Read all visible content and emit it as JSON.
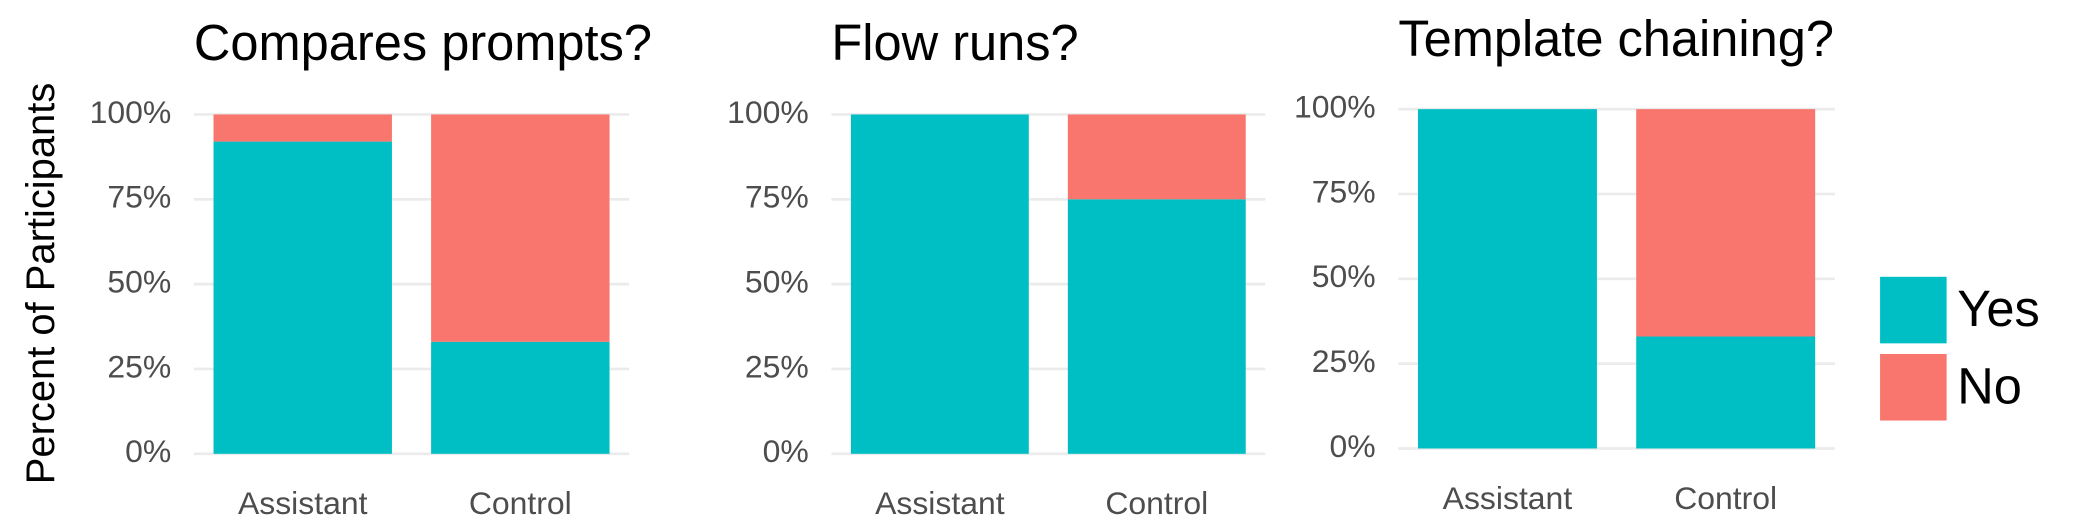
{
  "chart_data": [
    {
      "type": "bar",
      "stacked": true,
      "title": "Compares prompts?",
      "y_label": "Percent of Participants",
      "categories": [
        "Assistant",
        "Control"
      ],
      "series": [
        {
          "name": "Yes",
          "color": "#00bfc4",
          "values": [
            92,
            33
          ]
        },
        {
          "name": "No",
          "color": "#f8766d",
          "values": [
            8,
            67
          ]
        }
      ],
      "ylim": [
        0,
        100
      ],
      "yticks": [
        {
          "value": 0,
          "label": "0%"
        },
        {
          "value": 25,
          "label": "25%"
        },
        {
          "value": 50,
          "label": "50%"
        },
        {
          "value": 75,
          "label": "75%"
        },
        {
          "value": 100,
          "label": "100%"
        }
      ],
      "grid": true
    },
    {
      "type": "bar",
      "stacked": true,
      "title": "Flow runs?",
      "categories": [
        "Assistant",
        "Control"
      ],
      "series": [
        {
          "name": "Yes",
          "color": "#00bfc4",
          "values": [
            100,
            75
          ]
        },
        {
          "name": "No",
          "color": "#f8766d",
          "values": [
            0,
            25
          ]
        }
      ],
      "ylim": [
        0,
        100
      ],
      "yticks": [
        {
          "value": 0,
          "label": "0%"
        },
        {
          "value": 25,
          "label": "25%"
        },
        {
          "value": 50,
          "label": "50%"
        },
        {
          "value": 75,
          "label": "75%"
        },
        {
          "value": 100,
          "label": "100%"
        }
      ],
      "grid": true
    },
    {
      "type": "bar",
      "stacked": true,
      "title": "Template chaining?",
      "categories": [
        "Assistant",
        "Control"
      ],
      "series": [
        {
          "name": "Yes",
          "color": "#00bfc4",
          "values": [
            100,
            33
          ]
        },
        {
          "name": "No",
          "color": "#f8766d",
          "values": [
            0,
            67
          ]
        }
      ],
      "ylim": [
        0,
        100
      ],
      "yticks": [
        {
          "value": 0,
          "label": "0%"
        },
        {
          "value": 25,
          "label": "25%"
        },
        {
          "value": 50,
          "label": "50%"
        },
        {
          "value": 75,
          "label": "75%"
        },
        {
          "value": 100,
          "label": "100%"
        }
      ],
      "grid": true
    }
  ]
}
